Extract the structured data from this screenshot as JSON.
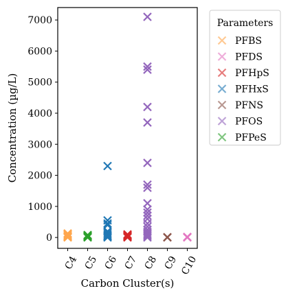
{
  "chart_data": {
    "type": "scatter",
    "xlabel": "Carbon Cluster(s)",
    "ylabel": "Concentration (µg/L)",
    "categories": [
      "C4",
      "C5",
      "C6",
      "C7",
      "C8",
      "C9",
      "C10"
    ],
    "ylim": [
      -350,
      7400
    ],
    "yticks": [
      0,
      1000,
      2000,
      3000,
      4000,
      5000,
      6000,
      7000
    ],
    "grid": false,
    "marker": "x",
    "legend": {
      "title": "Parameters",
      "placement": "outside-right-top"
    },
    "series": [
      {
        "name": "PFBS",
        "color": "#ffa64d",
        "points": [
          [
            "C4",
            0
          ],
          [
            "C4",
            10
          ],
          [
            "C4",
            30
          ],
          [
            "C4",
            50
          ],
          [
            "C4",
            80
          ],
          [
            "C4",
            110
          ],
          [
            "C4",
            130
          ]
        ]
      },
      {
        "name": "PFDS",
        "color": "#e377c2",
        "points": [
          [
            "C10",
            0
          ],
          [
            "C10",
            10
          ],
          [
            "C10",
            20
          ]
        ]
      },
      {
        "name": "PFHpS",
        "color": "#d62728",
        "points": [
          [
            "C7",
            0
          ],
          [
            "C7",
            20
          ],
          [
            "C7",
            40
          ],
          [
            "C7",
            60
          ],
          [
            "C7",
            80
          ],
          [
            "C7",
            100
          ]
        ]
      },
      {
        "name": "PFHxS",
        "color": "#1f77b4",
        "points": [
          [
            "C6",
            0
          ],
          [
            "C6",
            30
          ],
          [
            "C6",
            60
          ],
          [
            "C6",
            100
          ],
          [
            "C6",
            150
          ],
          [
            "C6",
            200
          ],
          [
            "C6",
            400
          ],
          [
            "C6",
            450
          ],
          [
            "C6",
            550
          ],
          [
            "C6",
            2300
          ]
        ]
      },
      {
        "name": "PFNS",
        "color": "#8c564b",
        "points": [
          [
            "C9",
            0
          ],
          [
            "C9",
            10
          ]
        ]
      },
      {
        "name": "PFOS",
        "color": "#9467bd",
        "points": [
          [
            "C8",
            0
          ],
          [
            "C8",
            40
          ],
          [
            "C8",
            80
          ],
          [
            "C8",
            120
          ],
          [
            "C8",
            180
          ],
          [
            "C8",
            250
          ],
          [
            "C8",
            350
          ],
          [
            "C8",
            450
          ],
          [
            "C8",
            600
          ],
          [
            "C8",
            700
          ],
          [
            "C8",
            800
          ],
          [
            "C8",
            900
          ],
          [
            "C8",
            1100
          ],
          [
            "C8",
            1600
          ],
          [
            "C8",
            1700
          ],
          [
            "C8",
            2400
          ],
          [
            "C8",
            3700
          ],
          [
            "C8",
            4200
          ],
          [
            "C8",
            5400
          ],
          [
            "C8",
            5500
          ],
          [
            "C8",
            7100
          ]
        ]
      },
      {
        "name": "PFPeS",
        "color": "#2ca02c",
        "points": [
          [
            "C5",
            0
          ],
          [
            "C5",
            20
          ],
          [
            "C5",
            40
          ],
          [
            "C5",
            60
          ],
          [
            "C5",
            80
          ]
        ]
      }
    ]
  }
}
